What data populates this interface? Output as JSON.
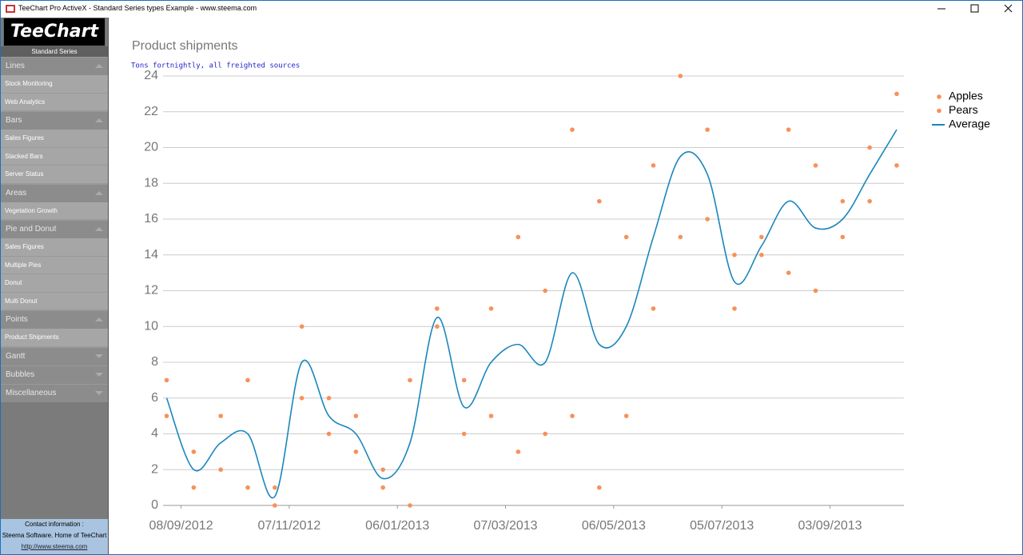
{
  "window": {
    "title": "TeeChart Pro ActiveX - Standard Series types Example - www.steema.com"
  },
  "sidebar": {
    "logo": "TeeChart",
    "subtitle": "Standard Series",
    "groups": [
      {
        "title": "Lines",
        "items": [
          "Stock Monitoring",
          "Web Analytics"
        ]
      },
      {
        "title": "Bars",
        "items": [
          "Sales Figures",
          "Stacked Bars",
          "Server Status"
        ]
      },
      {
        "title": "Areas",
        "items": [
          "Vegetation Growth"
        ]
      },
      {
        "title": "Pie and Donut",
        "items": [
          "Sales Figures",
          "Multiple Pies",
          "Donut",
          "Multi Donut"
        ]
      },
      {
        "title": "Points",
        "items": [
          "Product Shipments"
        ]
      },
      {
        "title": "Gantt",
        "items": []
      },
      {
        "title": "Bubbles",
        "items": []
      },
      {
        "title": "Miscellaneous",
        "items": []
      }
    ],
    "contact": [
      "Contact information :",
      "Steema Software. Home of TeeChart",
      "http://www.steema.com"
    ]
  },
  "chart_data": {
    "type": "scatter",
    "title": "Product shipments",
    "subtitle": "Tons fortnightly, all freighted sources",
    "x": [
      "31/08/2012",
      "15/09/2012",
      "30/09/2012",
      "15/10/2012",
      "30/10/2012",
      "14/11/2012",
      "29/11/2012",
      "14/12/2012",
      "29/12/2012",
      "13/01/2013",
      "28/01/2013",
      "12/02/2013",
      "27/02/2013",
      "14/03/2013",
      "29/03/2013",
      "13/04/2013",
      "28/04/2013",
      "13/05/2013",
      "28/05/2013",
      "12/06/2013",
      "27/06/2013",
      "12/07/2013",
      "27/07/2013",
      "11/08/2013",
      "26/08/2013",
      "10/09/2013",
      "25/09/2013",
      "10/10/2013"
    ],
    "series": [
      {
        "name": "Apples",
        "type": "scatter",
        "color": "#f7915a",
        "values": [
          7,
          3,
          5,
          7,
          1,
          10,
          6,
          5,
          2,
          7,
          11,
          7,
          11,
          15,
          12,
          21,
          17,
          15,
          19,
          24,
          21,
          14,
          15,
          21,
          19,
          17,
          20,
          23
        ]
      },
      {
        "name": "Pears",
        "type": "scatter",
        "color": "#f7915a",
        "values": [
          5,
          1,
          2,
          1,
          0,
          6,
          4,
          3,
          1,
          0,
          10,
          4,
          5,
          3,
          4,
          5,
          1,
          5,
          11,
          15,
          16,
          11,
          14,
          13,
          12,
          15,
          17,
          19
        ]
      },
      {
        "name": "Average",
        "type": "line",
        "color": "#1a86bd",
        "values": [
          6,
          2,
          3.5,
          4,
          0.5,
          8,
          5,
          4,
          1.5,
          3.5,
          10.5,
          5.5,
          8,
          9,
          8,
          13,
          9,
          10,
          15,
          19.5,
          18.5,
          12.5,
          14.5,
          17,
          15.5,
          16,
          18.5,
          21
        ]
      }
    ],
    "xlim": [
      "29/08/2012",
      "14/10/2013"
    ],
    "xticks": [
      "08/09/2012",
      "07/11/2012",
      "06/01/2013",
      "07/03/2013",
      "06/05/2013",
      "05/07/2013",
      "03/09/2013"
    ],
    "ylim": [
      0,
      24
    ],
    "yticks": [
      0,
      2,
      4,
      6,
      8,
      10,
      12,
      14,
      16,
      18,
      20,
      22,
      24
    ],
    "grid": true,
    "legend": "right"
  }
}
